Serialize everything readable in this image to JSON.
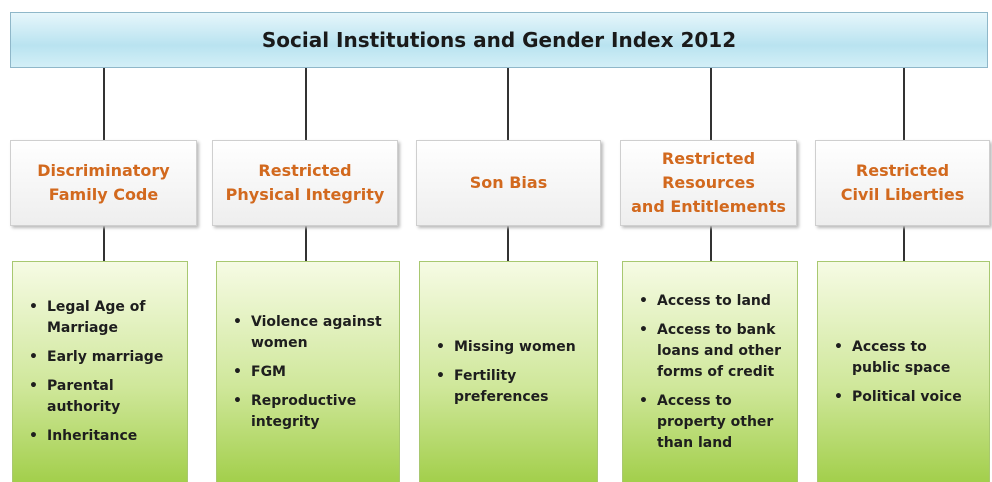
{
  "title": "Social Institutions and Gender Index 2012",
  "columns": [
    {
      "heading": [
        "Discriminatory",
        "Family Code"
      ],
      "items": [
        "Legal Age of Marriage",
        "Early marriage",
        "Parental authority",
        "Inheritance"
      ]
    },
    {
      "heading": [
        "Restricted",
        "Physical Integrity"
      ],
      "items": [
        "Violence against women",
        "FGM",
        "Reproductive integrity"
      ]
    },
    {
      "heading": [
        "Son Bias"
      ],
      "items": [
        "Missing women",
        "Fertility preferences"
      ]
    },
    {
      "heading": [
        "Restricted",
        "Resources",
        "and Entitlements"
      ],
      "items": [
        "Access to land",
        "Access to bank loans and other forms of credit",
        "Access to property other than land"
      ]
    },
    {
      "heading": [
        "Restricted",
        "Civil Liberties"
      ],
      "items": [
        "Access to public space",
        "Political voice"
      ]
    }
  ]
}
